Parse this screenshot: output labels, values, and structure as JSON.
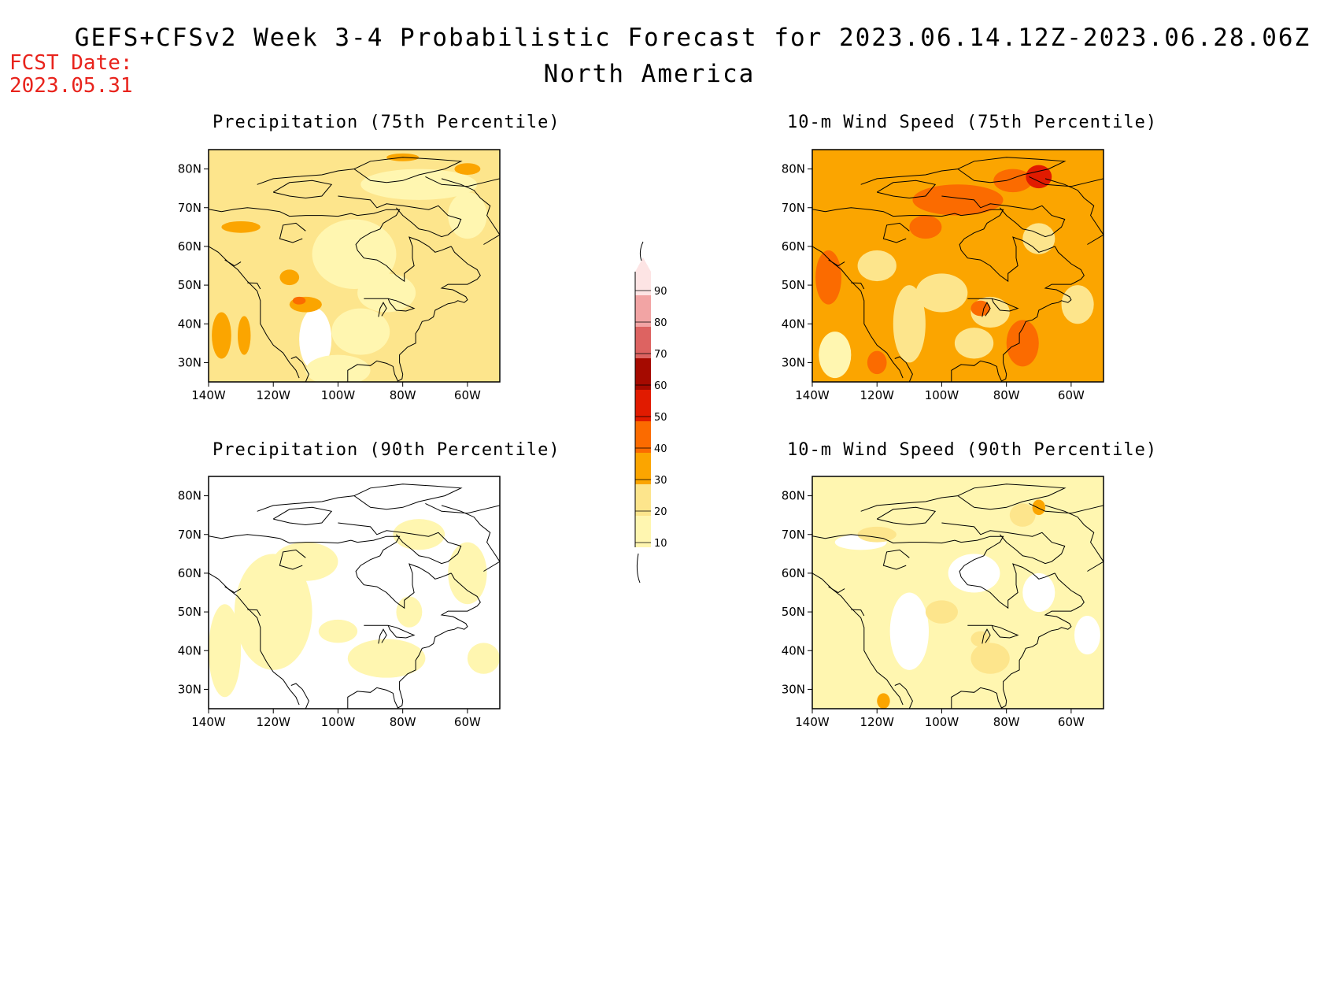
{
  "header": {
    "title": "GEFS+CFSv2 Week 3-4 Probabilistic Forecast for 2023.06.14.12Z-2023.06.28.06Z",
    "subtitle": "North America",
    "fcst_label": "FCST Date:",
    "fcst_date": "2023.05.31"
  },
  "panels": [
    {
      "title": "Precipitation (75th Percentile)"
    },
    {
      "title": "10-m Wind Speed (75th Percentile)"
    },
    {
      "title": "Precipitation (90th Percentile)"
    },
    {
      "title": "10-m Wind Speed (90th Percentile)"
    }
  ],
  "axes": {
    "lat_ticks": [
      "80N",
      "70N",
      "60N",
      "50N",
      "40N",
      "30N"
    ],
    "lon_ticks": [
      "140W",
      "120W",
      "100W",
      "80W",
      "60W"
    ]
  },
  "colorbar": {
    "levels": [
      "10",
      "20",
      "30",
      "40",
      "50",
      "60",
      "70",
      "80",
      "90"
    ],
    "colors": [
      "#fff6b0",
      "#fde58c",
      "#fba500",
      "#fb6b00",
      "#e11b00",
      "#a50a00",
      "#dd6361",
      "#f2a4a4",
      "#fde4e4"
    ]
  },
  "colors": {
    "accent_date": "#e8231c",
    "white": "#ffffff",
    "c10": "#fff6b0",
    "c20": "#fde58c",
    "c30": "#fba500",
    "c40": "#fb6b00",
    "c50": "#e11b00"
  }
}
